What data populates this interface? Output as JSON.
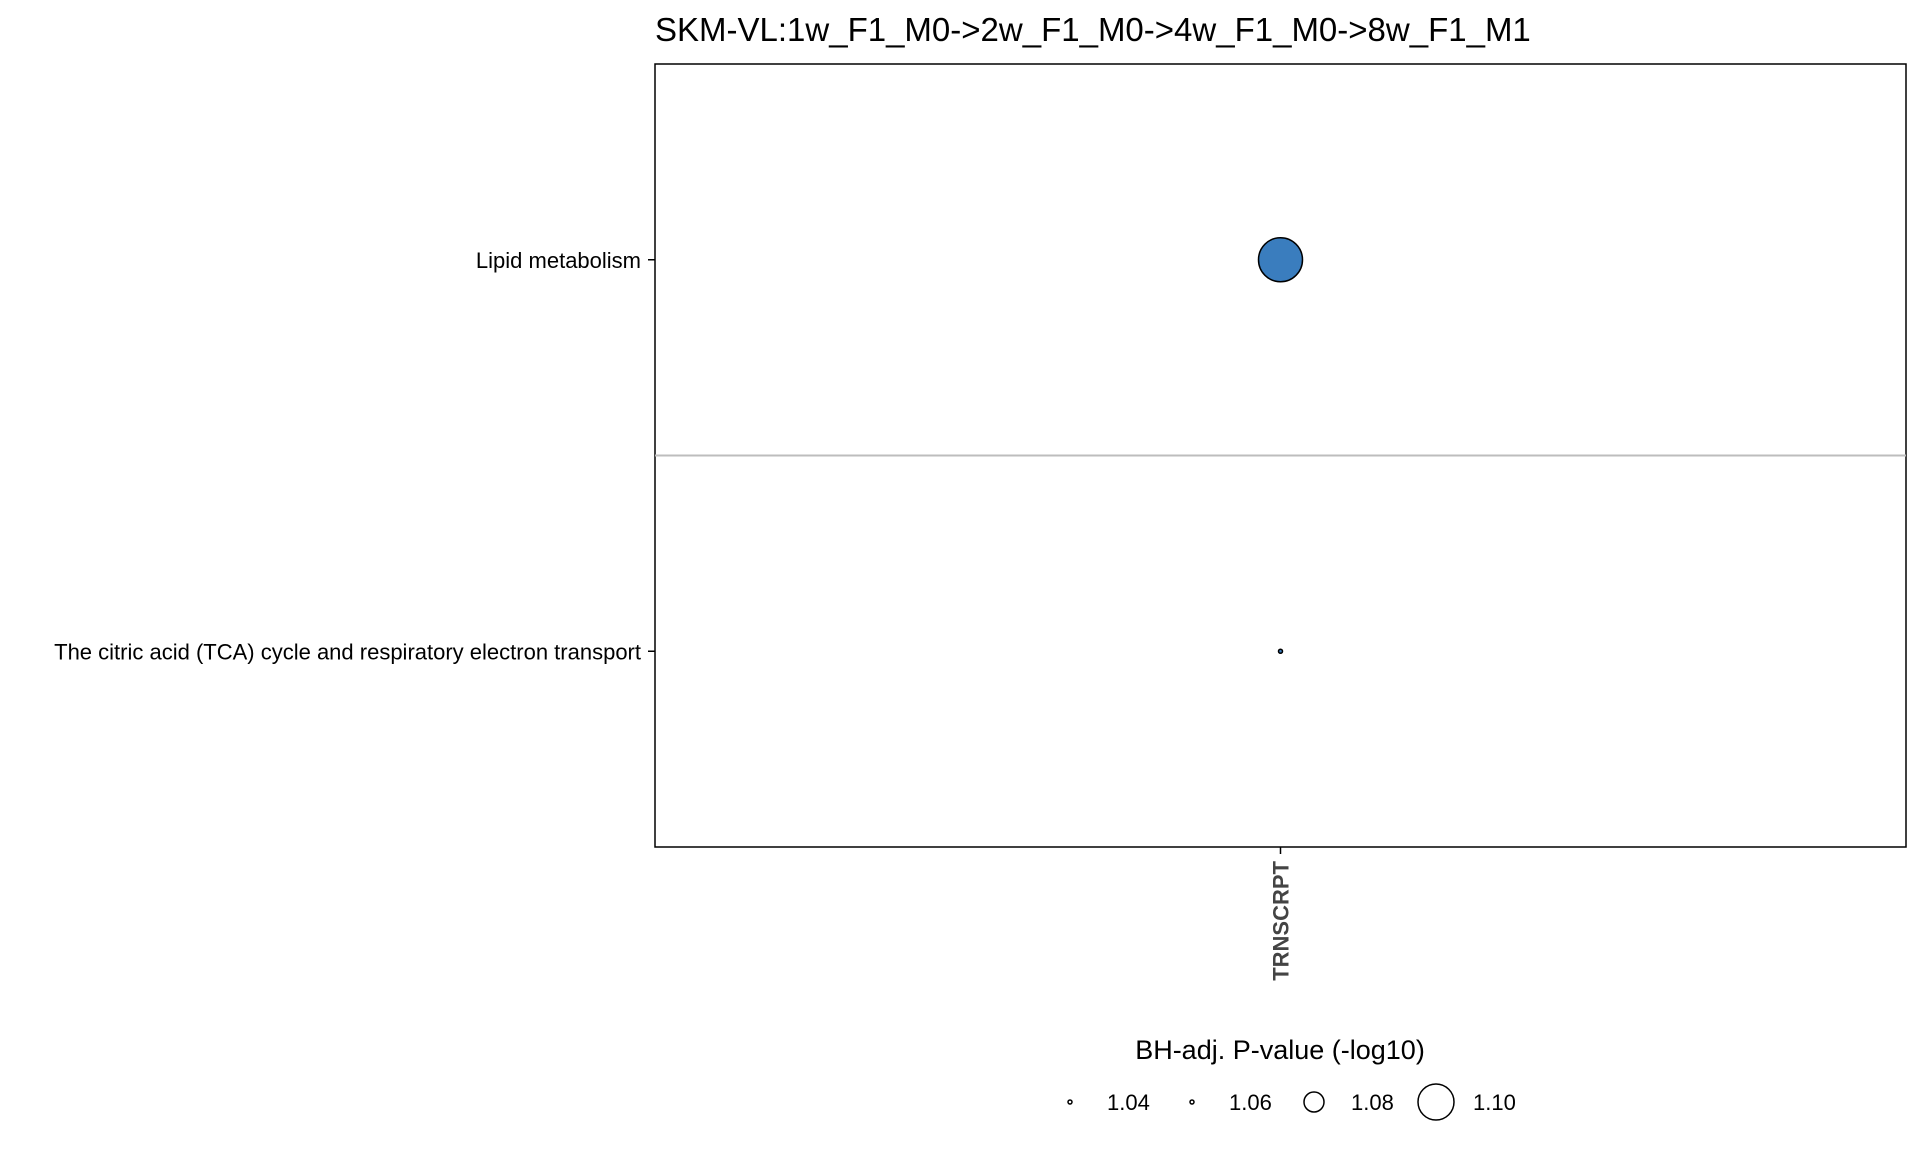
{
  "chart_data": {
    "type": "scatter",
    "title": "SKM-VL:1w_F1_M0->2w_F1_M0->4w_F1_M0->8w_F1_M1",
    "x_categories": [
      "TRNSCRPT"
    ],
    "y_categories": [
      "Lipid metabolism",
      "The citric acid (TCA) cycle and respiratory electron transport"
    ],
    "points": [
      {
        "x": "TRNSCRPT",
        "y": "Lipid metabolism",
        "size_value": 1.11
      },
      {
        "x": "TRNSCRPT",
        "y": "The citric acid (TCA) cycle and respiratory electron transport",
        "size_value": 1.03
      }
    ],
    "size_legend": {
      "title": "BH-adj. P-value (-log10)",
      "values": [
        1.04,
        1.06,
        1.08,
        1.1
      ],
      "labels": [
        "1.04",
        "1.06",
        "1.08",
        "1.10"
      ]
    },
    "point_color": "#3A7DBE",
    "grid": "horizontal separator between rows",
    "legend_position": "bottom"
  }
}
